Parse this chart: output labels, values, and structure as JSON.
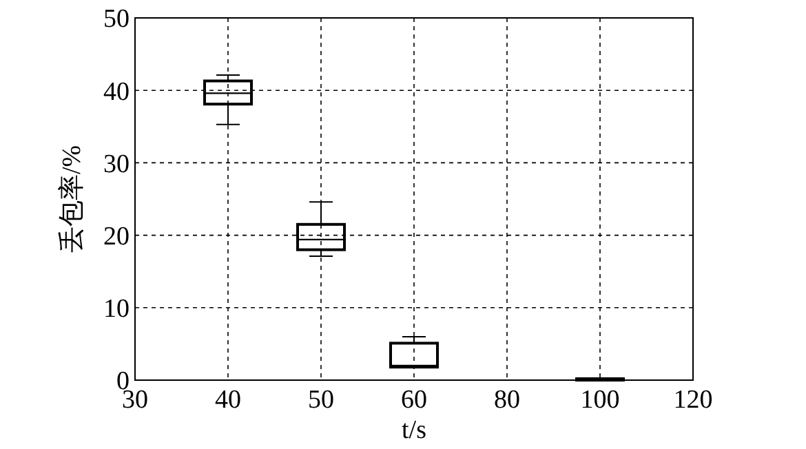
{
  "chart_data": {
    "type": "box",
    "xlabel": "t/s",
    "ylabel": "丢包率/%",
    "categories": [
      "30",
      "40",
      "50",
      "60",
      "80",
      "100",
      "120"
    ],
    "boxes": [
      null,
      {
        "low": 35.3,
        "q1": 38.1,
        "median": 39.6,
        "q3": 41.3,
        "high": 42.1
      },
      {
        "low": 17.1,
        "q1": 18.0,
        "median": 19.4,
        "q3": 21.5,
        "high": 24.6
      },
      {
        "low": 1.8,
        "q1": 1.8,
        "median": 2.0,
        "q3": 5.1,
        "high": 6.0
      },
      null,
      {
        "low": 0,
        "q1": 0,
        "median": 0.1,
        "q3": 0.2,
        "high": 0.2
      },
      null
    ],
    "color": "#000000",
    "ylim": [
      0,
      50
    ],
    "yticks": [
      0,
      10,
      20,
      30,
      40,
      50
    ],
    "grid": true
  }
}
